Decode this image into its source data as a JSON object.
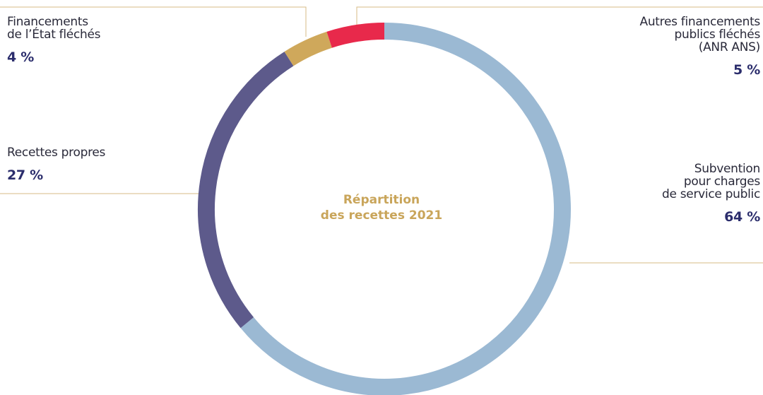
{
  "chart_data": {
    "type": "donut",
    "title": "Répartition\ndes recettes 2021",
    "categories": [
      "Subvention\npour charges\nde service public",
      "Recettes propres",
      "Financements\nde l’État fléchés",
      "Autres financements\npublics fléchés\n(ANR ANS)"
    ],
    "values": [
      64,
      27,
      4,
      5
    ],
    "value_labels": [
      "64 %",
      "27 %",
      "4 %",
      "5 %"
    ],
    "colors": [
      "#9bb9d3",
      "#5d5a8b",
      "#cfa85b",
      "#e8294b"
    ]
  }
}
